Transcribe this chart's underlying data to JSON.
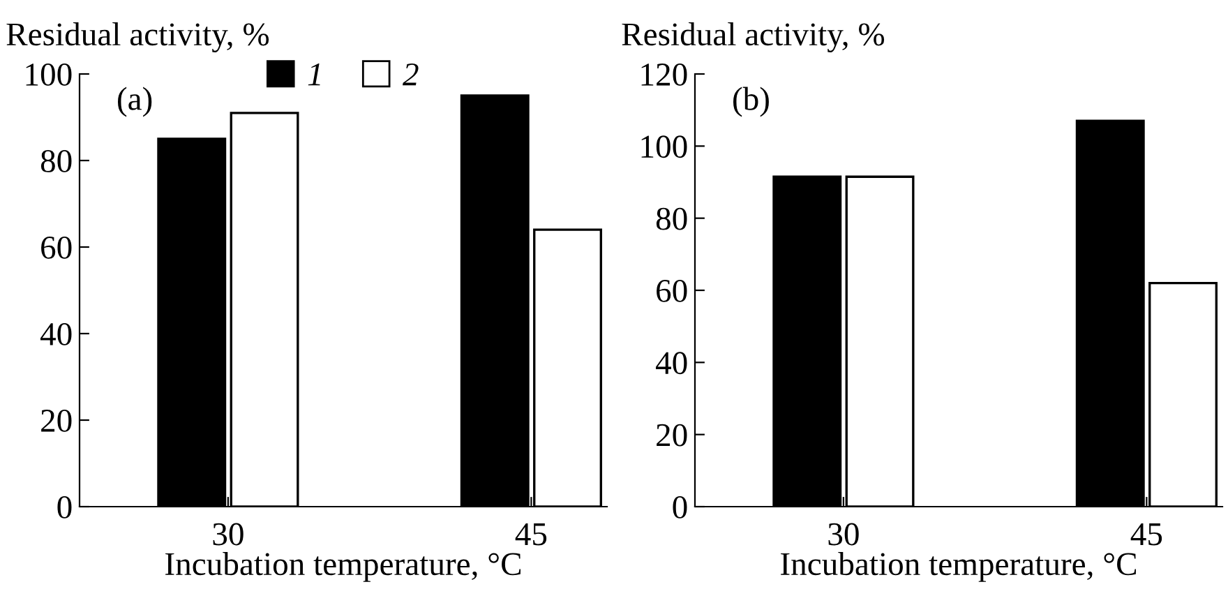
{
  "chart_data": [
    {
      "type": "bar",
      "ylabel": "Residual activity, %",
      "xlabel": "Incubation temperature, °C",
      "annotations": [
        "(a)"
      ],
      "categories": [
        "30",
        "45"
      ],
      "ylim": [
        0,
        100
      ],
      "yticks": [
        0,
        20,
        40,
        60,
        80,
        100
      ],
      "legend": "top",
      "grid": false,
      "series": [
        {
          "name": "1",
          "color": "#000000",
          "values": [
            85,
            95
          ]
        },
        {
          "name": "2",
          "color": "#ffffff",
          "values": [
            91,
            64
          ]
        }
      ]
    },
    {
      "type": "bar",
      "ylabel": "Residual activity, %",
      "xlabel": "Incubation temperature, °C",
      "annotations": [
        "(b)"
      ],
      "categories": [
        "30",
        "45"
      ],
      "ylim": [
        0,
        120
      ],
      "yticks": [
        0,
        20,
        40,
        60,
        80,
        100,
        120
      ],
      "grid": false,
      "series": [
        {
          "color": "#000000",
          "values": [
            91.5,
            107
          ]
        },
        {
          "color": "#ffffff",
          "values": [
            91.5,
            62
          ]
        }
      ]
    }
  ]
}
